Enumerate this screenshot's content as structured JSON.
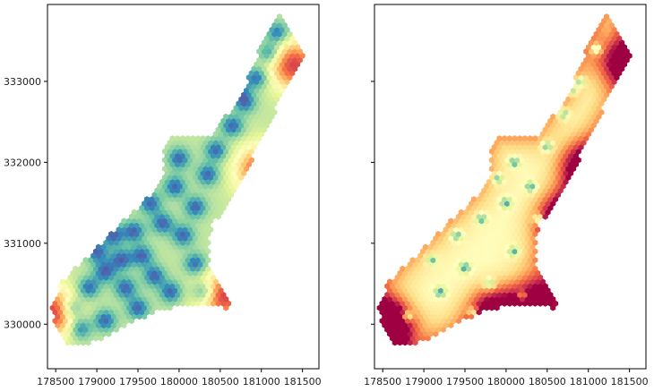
{
  "chart_data": [
    {
      "type": "heatmap",
      "title": "",
      "xlabel": "",
      "ylabel": "",
      "xlim": [
        178400,
        181700
      ],
      "ylim": [
        329450,
        333950
      ],
      "x_ticks": [
        178500,
        179000,
        179500,
        180000,
        180500,
        181000,
        181500
      ],
      "x_tick_labels": [
        "178500",
        "179000",
        "179500",
        "180000",
        "180500",
        "181000",
        "181500"
      ],
      "y_ticks": [
        330000,
        331000,
        332000,
        333000
      ],
      "y_tick_labels": [
        "330000",
        "331000",
        "332000",
        "333000"
      ],
      "colormap": "Spectral",
      "grid": false,
      "legend": "none",
      "region_outline": [
        [
          178480,
          330000
        ],
        [
          178450,
          330200
        ],
        [
          178560,
          330500
        ],
        [
          178950,
          330900
        ],
        [
          179350,
          331300
        ],
        [
          179650,
          331600
        ],
        [
          179800,
          331850
        ],
        [
          179800,
          332100
        ],
        [
          179900,
          332300
        ],
        [
          180350,
          332300
        ],
        [
          180750,
          332800
        ],
        [
          181000,
          333450
        ],
        [
          181250,
          333850
        ],
        [
          181520,
          333300
        ],
        [
          181150,
          332600
        ],
        [
          180850,
          331950
        ],
        [
          180400,
          331200
        ],
        [
          180350,
          330800
        ],
        [
          180650,
          330150
        ],
        [
          180450,
          330250
        ],
        [
          180100,
          330250
        ],
        [
          179700,
          330150
        ],
        [
          179300,
          329950
        ],
        [
          178900,
          329750
        ],
        [
          178650,
          329750
        ]
      ],
      "low_value_centers": [
        [
          178700,
          330200
        ],
        [
          178900,
          330450
        ],
        [
          179100,
          330650
        ],
        [
          179000,
          330900
        ],
        [
          179300,
          330800
        ],
        [
          179200,
          331100
        ],
        [
          179450,
          331150
        ],
        [
          179550,
          330850
        ],
        [
          179350,
          330450
        ],
        [
          179700,
          330600
        ],
        [
          179900,
          330400
        ],
        [
          179800,
          331250
        ],
        [
          180050,
          331100
        ],
        [
          180200,
          330750
        ],
        [
          179650,
          331500
        ],
        [
          179950,
          331700
        ],
        [
          180200,
          331450
        ],
        [
          180350,
          331850
        ],
        [
          180000,
          332050
        ],
        [
          180450,
          332150
        ],
        [
          180650,
          332450
        ],
        [
          180800,
          332750
        ],
        [
          180950,
          333050
        ],
        [
          181100,
          333350
        ],
        [
          181200,
          333600
        ],
        [
          180700,
          332950
        ],
        [
          179100,
          330050
        ],
        [
          178800,
          329950
        ],
        [
          179500,
          330200
        ],
        [
          180300,
          330400
        ]
      ],
      "high_value_centers": [
        [
          181000,
          331900
        ],
        [
          178470,
          330150
        ],
        [
          180550,
          330350
        ],
        [
          181400,
          333200
        ]
      ]
    },
    {
      "type": "heatmap",
      "title": "",
      "xlabel": "",
      "ylabel": "",
      "xlim": [
        178400,
        181700
      ],
      "ylim": [
        329450,
        333950
      ],
      "x_ticks": [
        178500,
        179000,
        179500,
        180000,
        180500,
        181000,
        181500
      ],
      "x_tick_labels": [
        "178500",
        "179000",
        "179500",
        "180000",
        "180500",
        "181000",
        "181500"
      ],
      "y_ticks": [
        330000,
        331000,
        332000,
        333000
      ],
      "y_tick_labels": [
        "",
        "",
        "",
        ""
      ],
      "shared_y": true,
      "colormap": "Spectral",
      "grid": false,
      "legend": "none",
      "low_value_centers": [
        [
          178800,
          330100
        ],
        [
          179200,
          330400
        ],
        [
          179500,
          330700
        ],
        [
          179800,
          330500
        ],
        [
          180100,
          330900
        ],
        [
          179400,
          331100
        ],
        [
          179700,
          331300
        ],
        [
          180000,
          331500
        ],
        [
          180300,
          331700
        ],
        [
          180100,
          332000
        ],
        [
          180500,
          332200
        ],
        [
          180700,
          332600
        ],
        [
          180900,
          333000
        ],
        [
          181100,
          333400
        ],
        [
          179900,
          331800
        ],
        [
          180400,
          331300
        ],
        [
          179100,
          330800
        ],
        [
          179600,
          330150
        ],
        [
          180200,
          330350
        ],
        [
          180800,
          332900
        ]
      ],
      "high_value_centers": [
        [
          180950,
          331950
        ],
        [
          178470,
          330050
        ],
        [
          178600,
          329950
        ],
        [
          179850,
          330150
        ],
        [
          180350,
          330300
        ],
        [
          181400,
          333250
        ],
        [
          180700,
          331300
        ]
      ]
    }
  ]
}
